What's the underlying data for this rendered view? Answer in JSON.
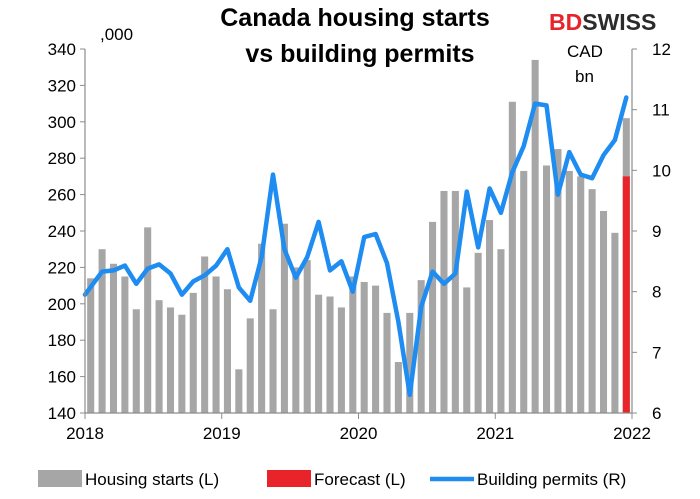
{
  "chart_data": {
    "type": "bar",
    "title_lines": [
      "Canada housing starts",
      "vs building permits"
    ],
    "left_unit": ",000",
    "right_unit_lines": [
      "CAD",
      "bn"
    ],
    "brand": {
      "part1": "BD",
      "part2": "SWISS"
    },
    "colors": {
      "bars": "#a6a6a6",
      "forecast": "#e8232a",
      "line": "#1e8cf0",
      "brand_red": "#e8232a",
      "brand_dark": "#2b2b2b"
    },
    "x_ticks": [
      "2018",
      "2019",
      "2020",
      "2021",
      "2022"
    ],
    "left_axis": {
      "min": 140,
      "max": 340,
      "ticks": [
        140,
        160,
        180,
        200,
        220,
        240,
        260,
        280,
        300,
        320,
        340
      ]
    },
    "right_axis": {
      "min": 6,
      "max": 12,
      "ticks": [
        6,
        7,
        8,
        9,
        10,
        11,
        12
      ]
    },
    "legend": [
      {
        "label": "Housing starts (L)",
        "type": "bar",
        "color": "#a6a6a6"
      },
      {
        "label": "Forecast (L)",
        "type": "bar",
        "color": "#e8232a"
      },
      {
        "label": "Building permits (R)",
        "type": "line",
        "color": "#1e8cf0"
      }
    ],
    "legend_position": "bottom",
    "grid": false,
    "months": [
      "2018-01",
      "2018-02",
      "2018-03",
      "2018-04",
      "2018-05",
      "2018-06",
      "2018-07",
      "2018-08",
      "2018-09",
      "2018-10",
      "2018-11",
      "2018-12",
      "2019-01",
      "2019-02",
      "2019-03",
      "2019-04",
      "2019-05",
      "2019-06",
      "2019-07",
      "2019-08",
      "2019-09",
      "2019-10",
      "2019-11",
      "2019-12",
      "2020-01",
      "2020-02",
      "2020-03",
      "2020-04",
      "2020-05",
      "2020-06",
      "2020-07",
      "2020-08",
      "2020-09",
      "2020-10",
      "2020-11",
      "2020-12",
      "2021-01",
      "2021-02",
      "2021-03",
      "2021-04",
      "2021-05",
      "2021-06",
      "2021-07",
      "2021-08",
      "2021-09",
      "2021-10",
      "2021-11",
      "2021-12"
    ],
    "series": [
      {
        "name": "Housing starts (L)",
        "axis": "left",
        "type": "bar",
        "values": [
          214,
          230,
          222,
          215,
          197,
          242,
          202,
          198,
          194,
          206,
          226,
          215,
          208,
          164,
          192,
          233,
          197,
          244,
          220,
          224,
          205,
          204,
          198,
          215,
          212,
          210,
          195,
          168,
          195,
          213,
          245,
          262,
          262,
          209,
          228,
          246,
          230,
          311,
          273,
          334,
          276,
          285,
          273,
          270,
          263,
          251,
          239,
          302
        ]
      },
      {
        "name": "Forecast (L)",
        "axis": "left",
        "type": "bar",
        "forecast_month": "2021-12",
        "value": 270
      },
      {
        "name": "Building permits (R)",
        "axis": "right",
        "type": "line",
        "values": [
          7.95,
          8.33,
          8.35,
          8.43,
          8.13,
          8.38,
          8.45,
          8.3,
          7.95,
          8.17,
          8.27,
          8.43,
          8.7,
          8.07,
          7.85,
          8.57,
          9.93,
          8.7,
          8.23,
          8.57,
          9.15,
          8.35,
          8.5,
          8.0,
          8.9,
          8.95,
          8.47,
          7.5,
          6.3,
          7.75,
          8.33,
          8.13,
          8.3,
          9.65,
          8.73,
          9.7,
          9.3,
          9.97,
          10.4,
          11.1,
          11.07,
          9.6,
          10.3,
          9.93,
          9.87,
          10.25,
          10.5,
          11.2
        ]
      }
    ]
  }
}
